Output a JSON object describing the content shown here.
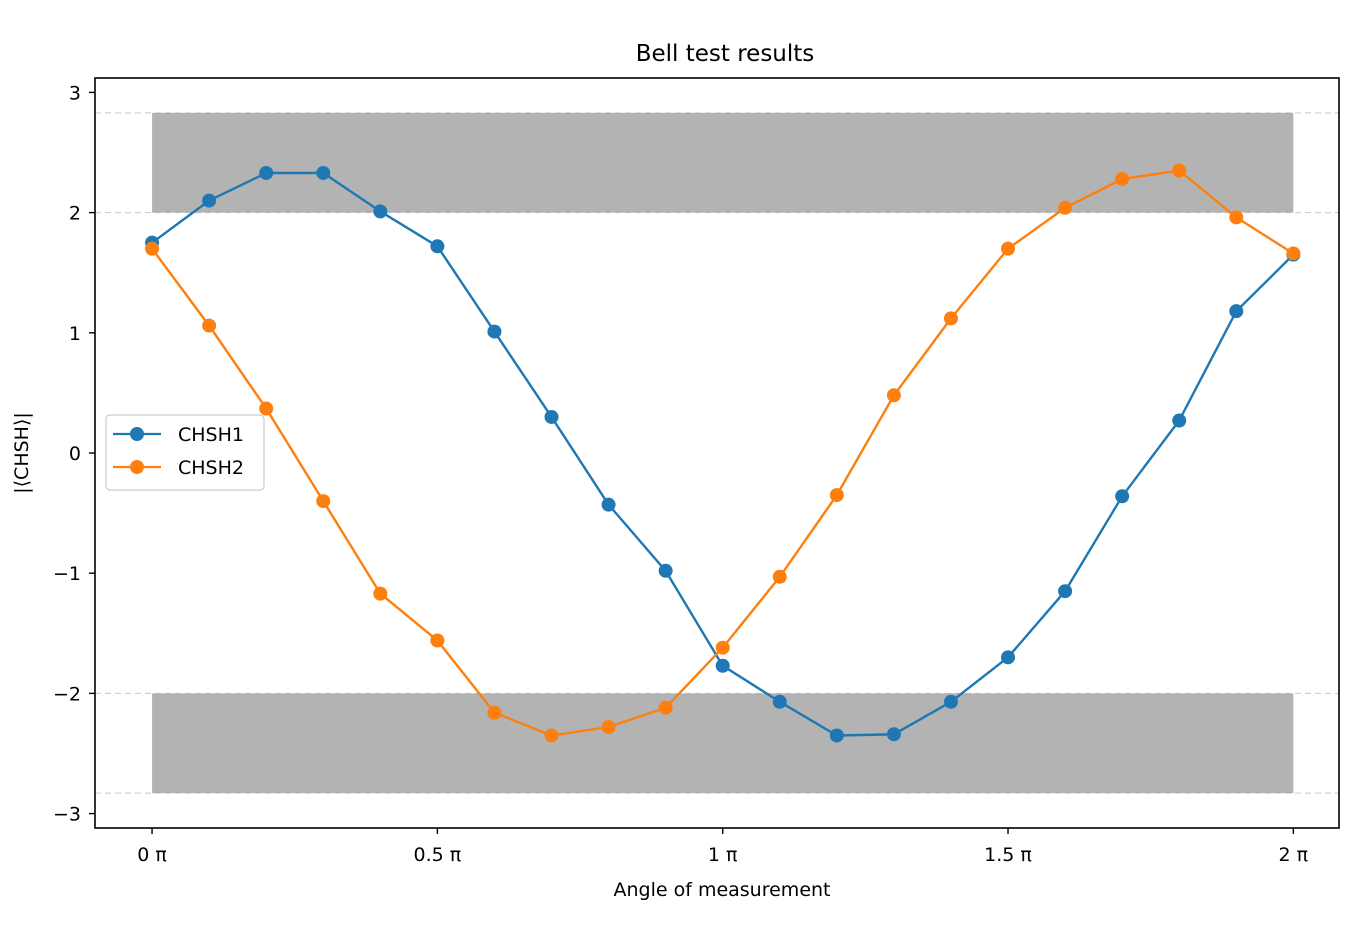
{
  "chart_data": {
    "type": "line",
    "title": "Bell test results",
    "xlabel": "Angle of measurement",
    "ylabel": "|⟨CHSH⟩|",
    "xlim": [
      -0.1,
      2.08
    ],
    "ylim": [
      -3.12,
      3.12
    ],
    "x_ticks": [
      {
        "value": 0,
        "label": "0 π"
      },
      {
        "value": 0.5,
        "label": "0.5 π"
      },
      {
        "value": 1,
        "label": "1 π"
      },
      {
        "value": 1.5,
        "label": "1.5 π"
      },
      {
        "value": 2,
        "label": "2 π"
      }
    ],
    "y_ticks": [
      {
        "value": 3,
        "label": "3"
      },
      {
        "value": 2,
        "label": "2"
      },
      {
        "value": 1,
        "label": "1"
      },
      {
        "value": 0,
        "label": "0"
      },
      {
        "value": -1,
        "label": "−1"
      },
      {
        "value": -2,
        "label": "−2"
      },
      {
        "value": -3,
        "label": "−3"
      }
    ],
    "x_unit": "π",
    "x": [
      0,
      0.1,
      0.2,
      0.3,
      0.4,
      0.5,
      0.6,
      0.7,
      0.8,
      0.9,
      1.0,
      1.1,
      1.2,
      1.3,
      1.4,
      1.5,
      1.6,
      1.7,
      1.8,
      1.9,
      2.0
    ],
    "shaded_bands": [
      {
        "y_from": 2.0,
        "y_to": 2.83,
        "x_from": 0,
        "x_to": 2,
        "color": "#b3b3b3"
      },
      {
        "y_from": -2.83,
        "y_to": -2.0,
        "x_from": 0,
        "x_to": 2,
        "color": "#b3b3b3"
      }
    ],
    "series": [
      {
        "name": "CHSH1",
        "color": "#1f77b4",
        "values": [
          1.75,
          2.1,
          2.33,
          2.33,
          2.01,
          1.72,
          1.01,
          0.3,
          -0.43,
          -0.98,
          -1.77,
          -2.07,
          -2.35,
          -2.34,
          -2.07,
          -1.7,
          -1.15,
          -0.36,
          0.27,
          1.18,
          1.65
        ]
      },
      {
        "name": "CHSH2",
        "color": "#ff7f0e",
        "values": [
          1.7,
          1.06,
          0.37,
          -0.4,
          -1.17,
          -1.56,
          -2.16,
          -2.35,
          -2.28,
          -2.12,
          -1.62,
          -1.03,
          -0.35,
          0.48,
          1.12,
          1.7,
          2.04,
          2.28,
          2.35,
          1.96,
          1.66
        ]
      }
    ],
    "legend": {
      "position": "center-left"
    },
    "grid": false
  }
}
